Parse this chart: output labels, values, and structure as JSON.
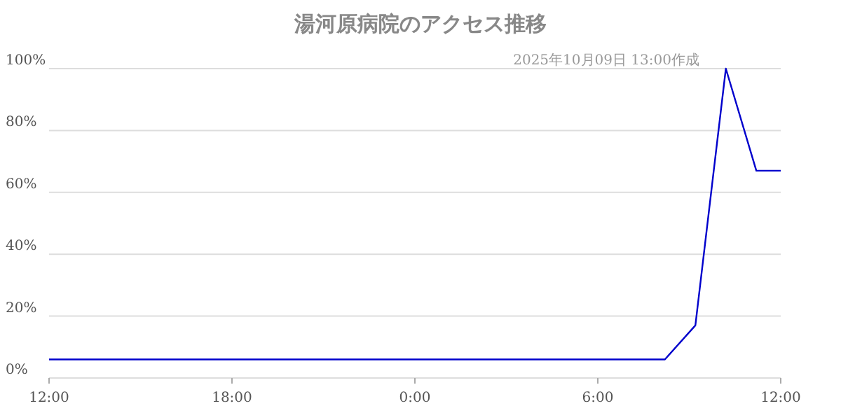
{
  "chart_data": {
    "type": "line",
    "title": "湯河原病院のアクセス推移",
    "annotations": [
      "2025年10月09日 13:00作成"
    ],
    "x": [
      "2025-10-08T12:00",
      "2025-10-09T08:12",
      "2025-10-09T09:12",
      "2025-10-09T10:12",
      "2025-10-09T11:12",
      "2025-10-09T12:00"
    ],
    "series": [
      {
        "color": "#0000cc",
        "values": [
          6,
          6,
          17,
          100,
          67,
          67
        ]
      }
    ],
    "xlim": [
      "2025-10-08T12:00",
      "2025-10-09T12:00"
    ],
    "xticks": [
      {
        "value": "2025-10-08T12:00",
        "label": "12:00"
      },
      {
        "value": "2025-10-08T18:00",
        "label": "18:00"
      },
      {
        "value": "2025-10-09T00:00",
        "label": "0:00"
      },
      {
        "value": "2025-10-09T06:00",
        "label": "6:00"
      },
      {
        "value": "2025-10-09T12:00",
        "label": "12:00"
      }
    ],
    "ylim": [
      0,
      100
    ],
    "yticks": [
      {
        "value": 0,
        "label": "0%"
      },
      {
        "value": 20,
        "label": "20%"
      },
      {
        "value": 40,
        "label": "40%"
      },
      {
        "value": 60,
        "label": "60%"
      },
      {
        "value": 80,
        "label": "80%"
      },
      {
        "value": 100,
        "label": "100%"
      }
    ],
    "grid": "y"
  }
}
